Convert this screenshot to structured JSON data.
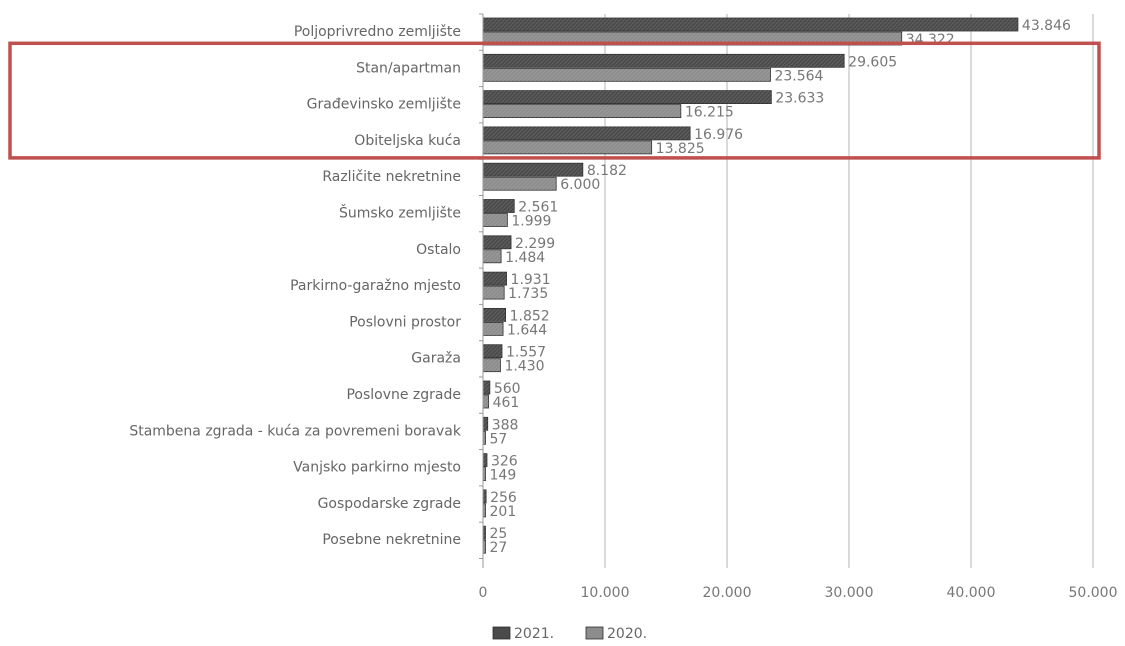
{
  "chart_data": {
    "type": "bar",
    "orientation": "horizontal",
    "categories": [
      "Poljoprivredno zemljište",
      "Stan/apartman",
      "Građevinsko zemljište",
      "Obiteljska kuća",
      "Različite nekretnine",
      "Šumsko zemljište",
      "Ostalo",
      "Parkirno-garažno mjesto",
      "Poslovni prostor",
      "Garaža",
      "Poslovne zgrade",
      "Stambena zgrada - kuća za povremeni boravak",
      "Vanjsko parkirno mjesto",
      "Gospodarske zgrade",
      "Posebne nekretnine"
    ],
    "series": [
      {
        "name": "2021.",
        "color": "#4a4a4a",
        "values": [
          43846,
          29605,
          23633,
          16976,
          8182,
          2561,
          2299,
          1931,
          1852,
          1557,
          560,
          388,
          326,
          256,
          25
        ],
        "labels": [
          "43.846",
          "29.605",
          "23.633",
          "16.976",
          "8.182",
          "2.561",
          "2.299",
          "1.931",
          "1.852",
          "1.557",
          "560",
          "388",
          "326",
          "256",
          "25"
        ]
      },
      {
        "name": "2020.",
        "color": "#8c8c8c",
        "values": [
          34322,
          23564,
          16215,
          13825,
          6000,
          1999,
          1484,
          1735,
          1644,
          1430,
          461,
          57,
          149,
          201,
          27
        ],
        "labels": [
          "34.322",
          "23.564",
          "16.215",
          "13.825",
          "6.000",
          "1.999",
          "1.484",
          "1.735",
          "1.644",
          "1.430",
          "461",
          "57",
          "149",
          "201",
          "27"
        ]
      }
    ],
    "xlim": [
      0,
      50000
    ],
    "xticks": [
      0,
      10000,
      20000,
      30000,
      40000,
      50000
    ],
    "xtick_labels": [
      "0",
      "10.000",
      "20.000",
      "30.000",
      "40.000",
      "50.000"
    ],
    "grid": "vertical",
    "legend_position": "bottom-center",
    "highlight": {
      "categories": [
        "Stan/apartman",
        "Građevinsko zemljište",
        "Obiteljska kuća"
      ],
      "color": "#c0504d"
    }
  }
}
